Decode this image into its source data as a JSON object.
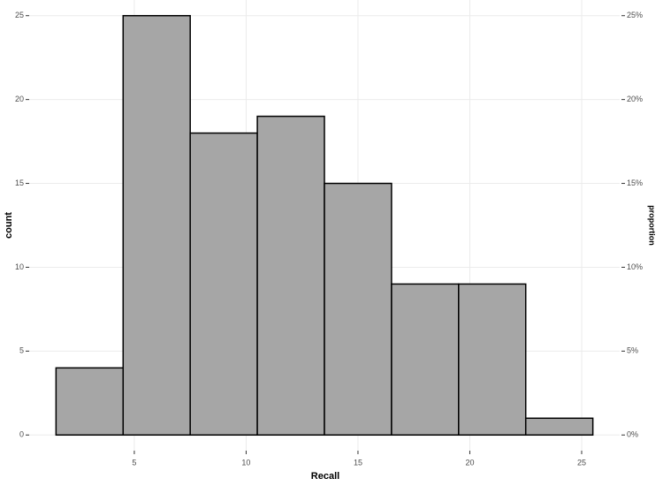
{
  "chart_data": {
    "type": "histogram",
    "x_label": "Recall",
    "y_label": "count",
    "y2_label": "proportion",
    "bins": [
      1.5,
      4.5,
      7.5,
      10.5,
      13.5,
      16.5,
      19.5,
      22.5,
      25.5
    ],
    "counts": [
      4,
      25,
      18,
      19,
      15,
      9,
      9,
      1
    ],
    "color": "#a6a6a6",
    "edgecolor": "#000000",
    "xlim": [
      0.3,
      26.7
    ],
    "xticks": [
      5,
      10,
      15,
      20,
      25
    ],
    "ylim": [
      -1.25,
      26.25
    ],
    "yticks": [
      0,
      5,
      10,
      15,
      20,
      25
    ],
    "y2lim": [
      -1.25,
      26.25
    ],
    "y2ticks": [
      {
        "value": 0,
        "label": "0%"
      },
      {
        "value": 5,
        "label": "5%"
      },
      {
        "value": 10,
        "label": "10%"
      },
      {
        "value": 15,
        "label": "15%"
      },
      {
        "value": 20,
        "label": "20%"
      },
      {
        "value": 25,
        "label": "25%"
      }
    ],
    "grid": true
  }
}
